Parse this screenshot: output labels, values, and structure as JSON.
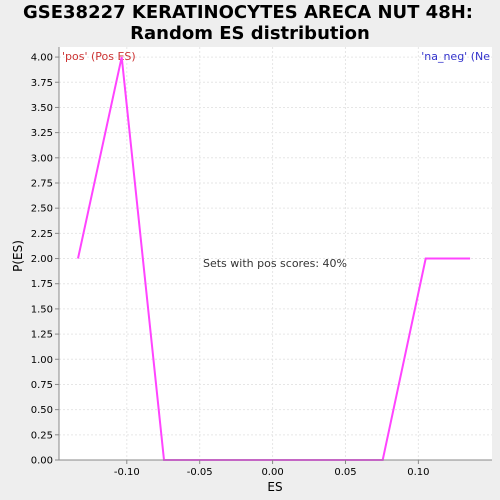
{
  "chart_data": {
    "type": "line",
    "title": "GSE38227 KERATINOCYTES ARECA NUT 48H:\nRandom ES distribution",
    "xlabel": "ES",
    "ylabel": "P(ES)",
    "xlim": [
      -0.1465,
      0.1505
    ],
    "ylim": [
      0,
      4.1
    ],
    "x_ticks": [
      -0.1,
      -0.05,
      0.0,
      0.05,
      0.1
    ],
    "x_tick_labels": [
      "-0.10",
      "-0.05",
      "0.00",
      "0.05",
      "0.10"
    ],
    "y_ticks": [
      0,
      0.25,
      0.5,
      0.75,
      1.0,
      1.25,
      1.5,
      1.75,
      2.0,
      2.25,
      2.5,
      2.75,
      3.0,
      3.25,
      3.5,
      3.75,
      4.0
    ],
    "y_tick_labels": [
      "0.00",
      "0.25",
      "0.50",
      "0.75",
      "1.00",
      "1.25",
      "1.50",
      "1.75",
      "2.00",
      "2.25",
      "2.50",
      "2.75",
      "3.00",
      "3.25",
      "3.50",
      "3.75",
      "4.00"
    ],
    "grid": true,
    "series": [
      {
        "x": [
          -0.1335,
          -0.1035,
          -0.0745,
          -0.045,
          -0.015,
          0.015,
          0.045,
          0.0755,
          0.105,
          0.1355
        ],
        "y": [
          2.0,
          4.0,
          0.0,
          0.0,
          0.0,
          0.0,
          0.0,
          0.0,
          2.0,
          2.0
        ],
        "color": "#ff44ff"
      }
    ],
    "annotations": {
      "left_label": "'pos' (Pos ES)",
      "right_label": "'na_neg' (Ne",
      "center_text": "Sets with pos scores: 40%",
      "left_color": "#cc3333",
      "right_color": "#3333cc",
      "center_color": "#333333"
    }
  }
}
